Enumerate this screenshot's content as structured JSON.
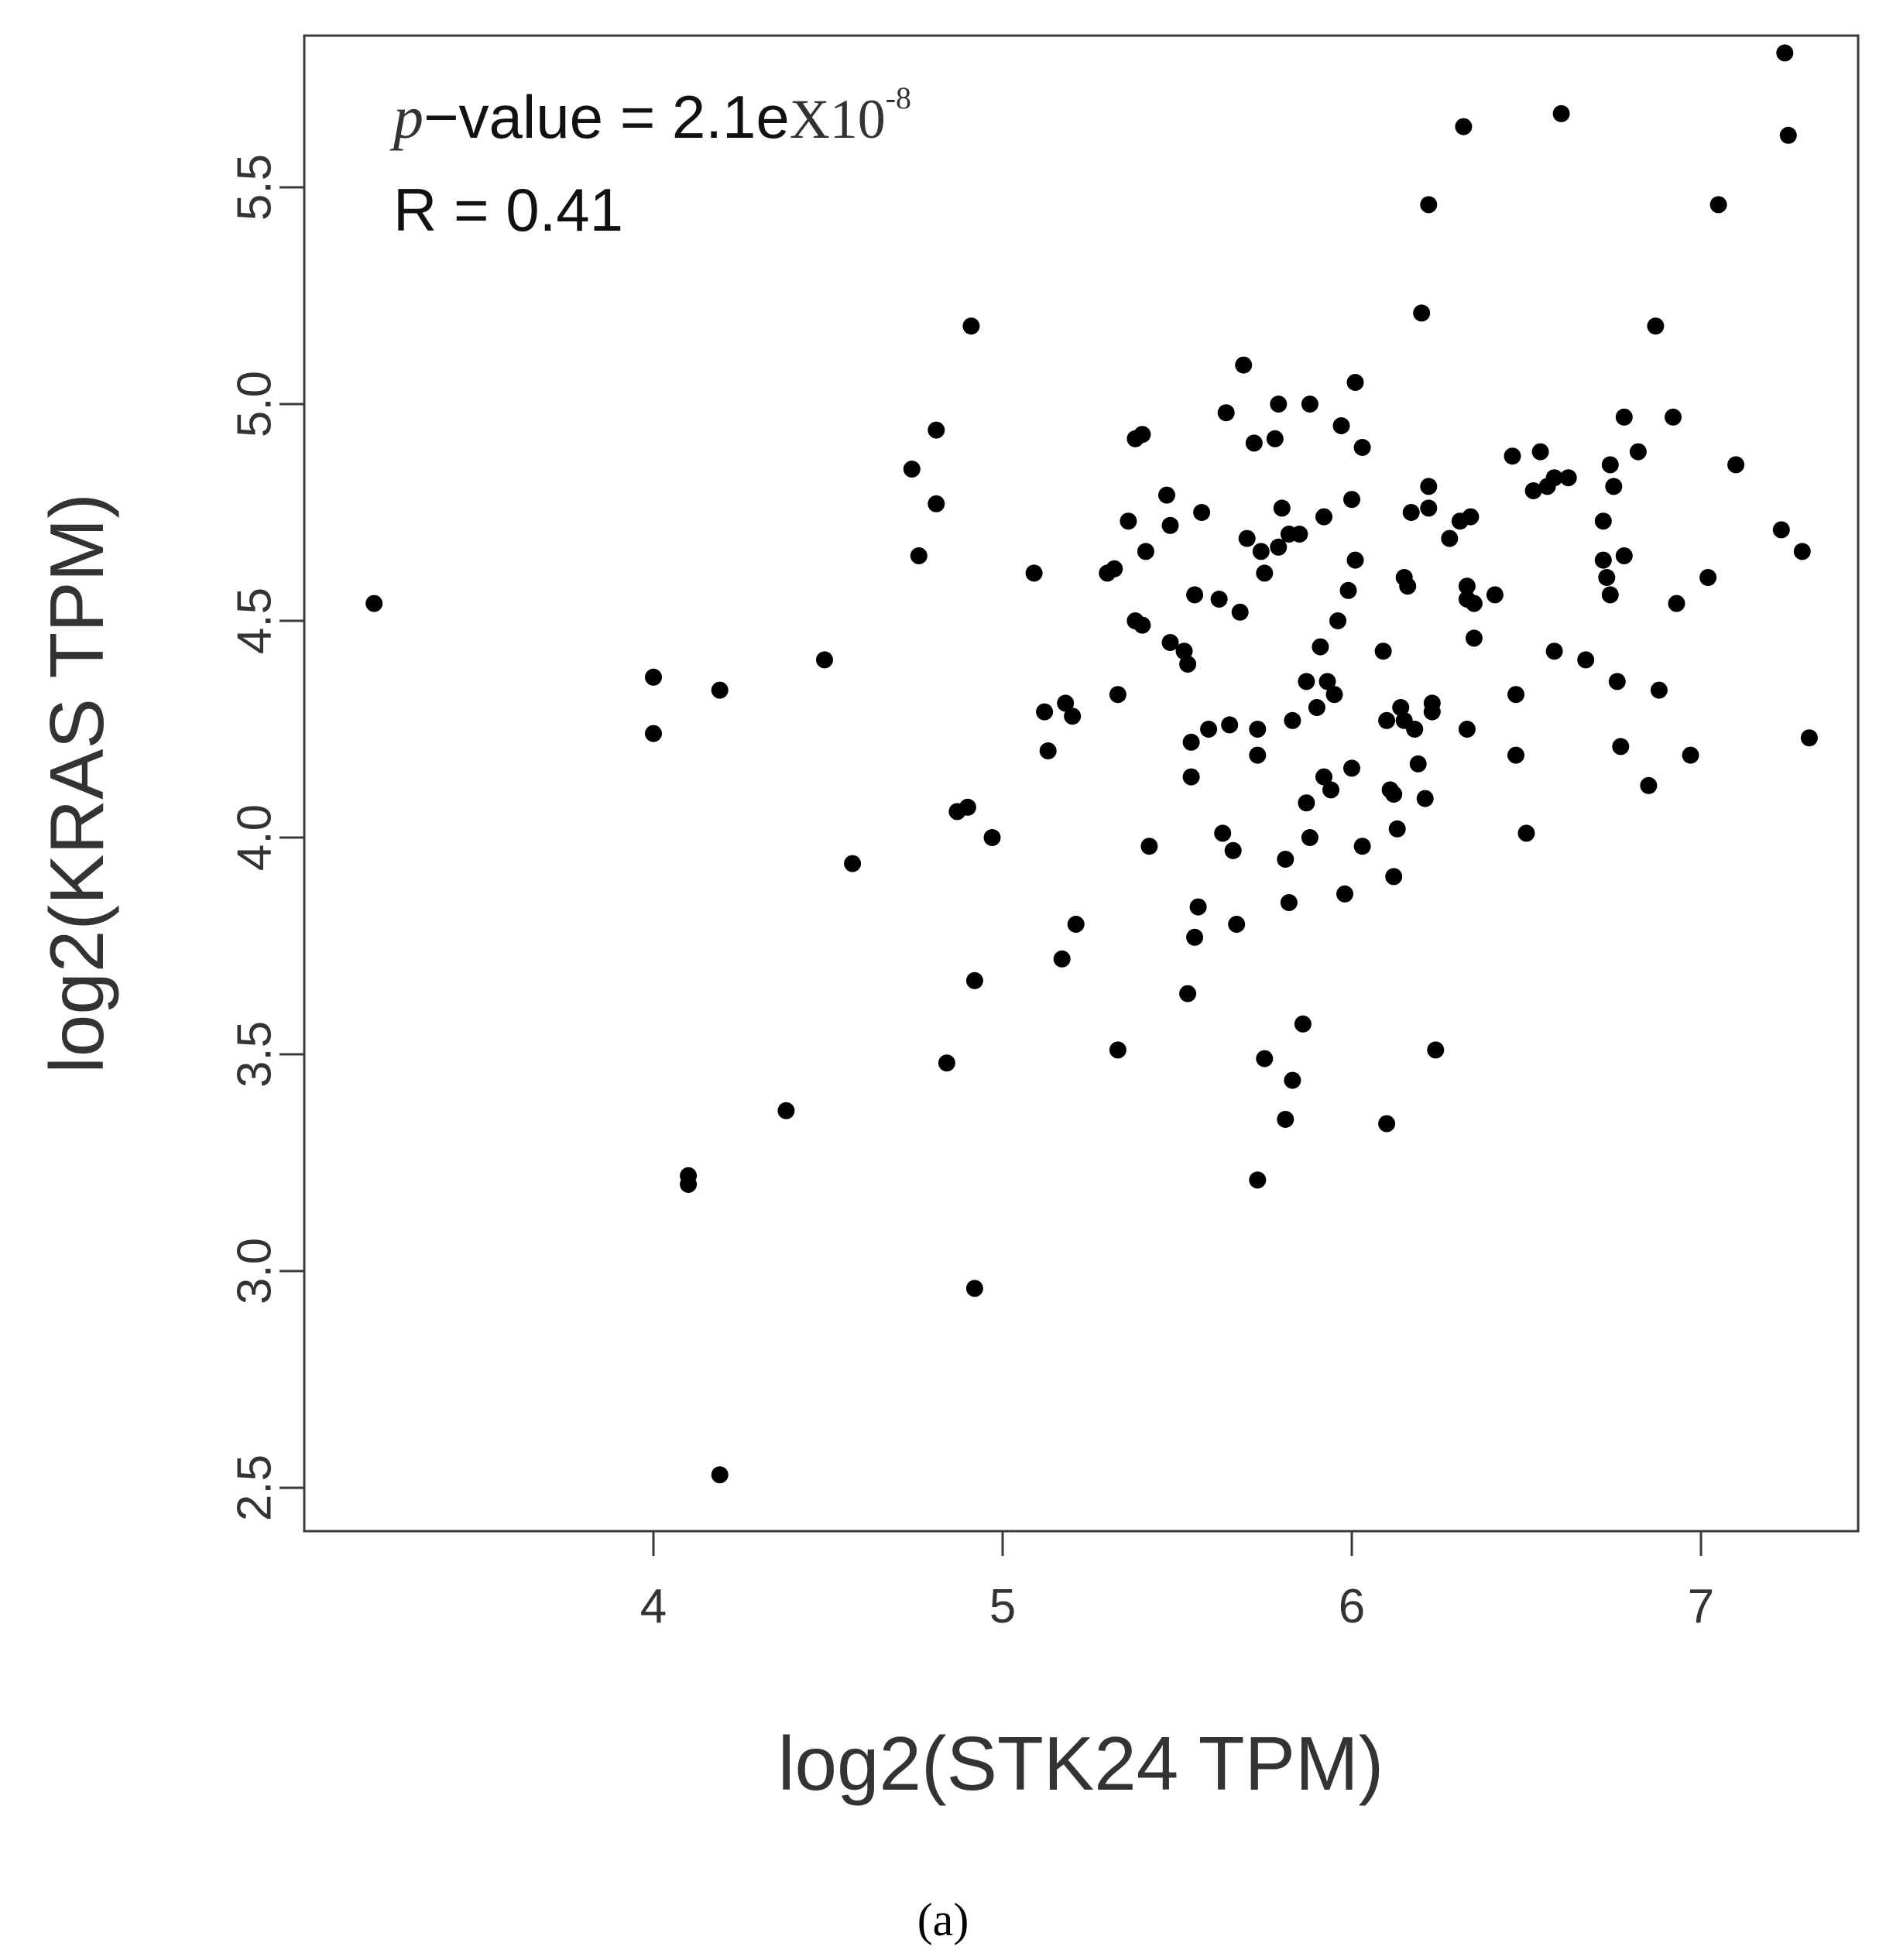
{
  "chart_data": {
    "type": "scatter",
    "xlabel": "log2(STK24 TPM)",
    "ylabel": "log2(KRAS TPM)",
    "xlim": [
      3.0,
      7.45
    ],
    "ylim": [
      2.4,
      5.85
    ],
    "x_ticks": [
      "4",
      "5",
      "6",
      "7"
    ],
    "y_ticks": [
      "2.5",
      "3.0",
      "3.5",
      "4.0",
      "4.5",
      "5.0",
      "5.5"
    ],
    "grid": false,
    "legend": "none",
    "marker_color": "#000000",
    "annotations": {
      "pvalue_italic": "p",
      "pvalue_text": "−value = 2.1e",
      "pvalue_times": "X10",
      "pvalue_exponent": "-8",
      "r_text": "R = 0.41"
    },
    "panel_label": "(a)",
    "points": [
      [
        3.2,
        4.54
      ],
      [
        4.0,
        4.37
      ],
      [
        4.0,
        4.24
      ],
      [
        4.1,
        3.22
      ],
      [
        4.1,
        3.2
      ],
      [
        4.19,
        4.34
      ],
      [
        4.19,
        2.53
      ],
      [
        4.38,
        3.37
      ],
      [
        4.49,
        4.41
      ],
      [
        4.57,
        3.94
      ],
      [
        4.74,
        4.85
      ],
      [
        4.76,
        4.65
      ],
      [
        4.81,
        4.94
      ],
      [
        4.81,
        4.77
      ],
      [
        4.84,
        3.48
      ],
      [
        4.87,
        4.06
      ],
      [
        4.9,
        4.07
      ],
      [
        4.91,
        5.18
      ],
      [
        4.92,
        3.67
      ],
      [
        4.92,
        2.96
      ],
      [
        4.97,
        4.0
      ],
      [
        5.09,
        4.61
      ],
      [
        5.12,
        4.29
      ],
      [
        5.13,
        4.2
      ],
      [
        5.17,
        3.72
      ],
      [
        5.18,
        4.31
      ],
      [
        5.2,
        4.28
      ],
      [
        5.21,
        3.8
      ],
      [
        5.3,
        4.61
      ],
      [
        5.32,
        4.62
      ],
      [
        5.33,
        4.33
      ],
      [
        5.33,
        3.51
      ],
      [
        5.36,
        4.73
      ],
      [
        5.38,
        4.92
      ],
      [
        5.38,
        4.5
      ],
      [
        5.4,
        4.93
      ],
      [
        5.4,
        4.49
      ],
      [
        5.41,
        4.66
      ],
      [
        5.42,
        3.98
      ],
      [
        5.47,
        4.79
      ],
      [
        5.48,
        4.72
      ],
      [
        5.48,
        4.45
      ],
      [
        5.52,
        4.43
      ],
      [
        5.53,
        4.4
      ],
      [
        5.53,
        3.64
      ],
      [
        5.54,
        4.22
      ],
      [
        5.54,
        4.14
      ],
      [
        5.55,
        4.56
      ],
      [
        5.55,
        3.77
      ],
      [
        5.56,
        3.84
      ],
      [
        5.57,
        4.75
      ],
      [
        5.59,
        4.25
      ],
      [
        5.62,
        4.55
      ],
      [
        5.63,
        4.01
      ],
      [
        5.64,
        4.98
      ],
      [
        5.65,
        4.26
      ],
      [
        5.66,
        3.97
      ],
      [
        5.67,
        3.8
      ],
      [
        5.68,
        4.52
      ],
      [
        5.69,
        5.09
      ],
      [
        5.7,
        4.69
      ],
      [
        5.72,
        4.91
      ],
      [
        5.73,
        4.25
      ],
      [
        5.73,
        4.19
      ],
      [
        5.73,
        3.21
      ],
      [
        5.74,
        4.66
      ],
      [
        5.75,
        4.61
      ],
      [
        5.75,
        3.49
      ],
      [
        5.78,
        4.92
      ],
      [
        5.79,
        4.67
      ],
      [
        5.79,
        5.0
      ],
      [
        5.8,
        4.76
      ],
      [
        5.81,
        3.35
      ],
      [
        5.81,
        3.95
      ],
      [
        5.82,
        4.7
      ],
      [
        5.82,
        3.85
      ],
      [
        5.83,
        4.27
      ],
      [
        5.83,
        3.44
      ],
      [
        5.85,
        4.7
      ],
      [
        5.86,
        3.57
      ],
      [
        5.87,
        4.36
      ],
      [
        5.87,
        4.08
      ],
      [
        5.88,
        5.0
      ],
      [
        5.88,
        4.0
      ],
      [
        5.9,
        4.3
      ],
      [
        5.91,
        4.44
      ],
      [
        5.92,
        4.74
      ],
      [
        5.92,
        4.14
      ],
      [
        5.93,
        4.36
      ],
      [
        5.94,
        4.11
      ],
      [
        5.95,
        4.33
      ],
      [
        5.96,
        4.5
      ],
      [
        5.97,
        4.95
      ],
      [
        5.98,
        3.87
      ],
      [
        5.99,
        4.57
      ],
      [
        6.0,
        4.78
      ],
      [
        6.0,
        4.16
      ],
      [
        6.01,
        4.64
      ],
      [
        6.01,
        5.05
      ],
      [
        6.03,
        4.9
      ],
      [
        6.03,
        3.98
      ],
      [
        6.09,
        4.43
      ],
      [
        6.1,
        4.27
      ],
      [
        6.1,
        3.34
      ],
      [
        6.11,
        4.11
      ],
      [
        6.12,
        4.1
      ],
      [
        6.12,
        3.91
      ],
      [
        6.13,
        4.02
      ],
      [
        6.14,
        4.3
      ],
      [
        6.15,
        4.6
      ],
      [
        6.15,
        4.27
      ],
      [
        6.16,
        4.58
      ],
      [
        6.17,
        4.75
      ],
      [
        6.18,
        4.25
      ],
      [
        6.19,
        4.17
      ],
      [
        6.2,
        5.21
      ],
      [
        6.21,
        4.09
      ],
      [
        6.22,
        5.46
      ],
      [
        6.22,
        4.76
      ],
      [
        6.22,
        4.81
      ],
      [
        6.23,
        4.29
      ],
      [
        6.23,
        4.31
      ],
      [
        6.24,
        3.51
      ],
      [
        6.28,
        4.69
      ],
      [
        6.31,
        4.73
      ],
      [
        6.32,
        5.64
      ],
      [
        6.33,
        4.58
      ],
      [
        6.33,
        4.55
      ],
      [
        6.33,
        4.25
      ],
      [
        6.34,
        4.74
      ],
      [
        6.35,
        4.54
      ],
      [
        6.35,
        4.46
      ],
      [
        6.41,
        4.56
      ],
      [
        6.46,
        4.88
      ],
      [
        6.47,
        4.33
      ],
      [
        6.47,
        4.19
      ],
      [
        6.5,
        4.01
      ],
      [
        6.52,
        4.8
      ],
      [
        6.54,
        4.89
      ],
      [
        6.56,
        4.81
      ],
      [
        6.58,
        4.43
      ],
      [
        6.58,
        4.83
      ],
      [
        6.6,
        5.67
      ],
      [
        6.62,
        4.83
      ],
      [
        6.67,
        4.41
      ],
      [
        6.72,
        4.64
      ],
      [
        6.72,
        4.73
      ],
      [
        6.73,
        4.6
      ],
      [
        6.74,
        4.56
      ],
      [
        6.74,
        4.86
      ],
      [
        6.75,
        4.81
      ],
      [
        6.76,
        4.36
      ],
      [
        6.77,
        4.21
      ],
      [
        6.78,
        4.97
      ],
      [
        6.78,
        4.65
      ],
      [
        6.82,
        4.89
      ],
      [
        6.85,
        4.12
      ],
      [
        6.87,
        5.18
      ],
      [
        6.88,
        4.34
      ],
      [
        6.92,
        4.97
      ],
      [
        6.93,
        4.54
      ],
      [
        6.97,
        4.19
      ],
      [
        7.02,
        4.6
      ],
      [
        7.05,
        5.46
      ],
      [
        7.1,
        4.86
      ],
      [
        7.23,
        4.71
      ],
      [
        7.24,
        5.81
      ],
      [
        7.25,
        5.62
      ],
      [
        7.29,
        4.66
      ],
      [
        7.31,
        4.23
      ]
    ]
  }
}
